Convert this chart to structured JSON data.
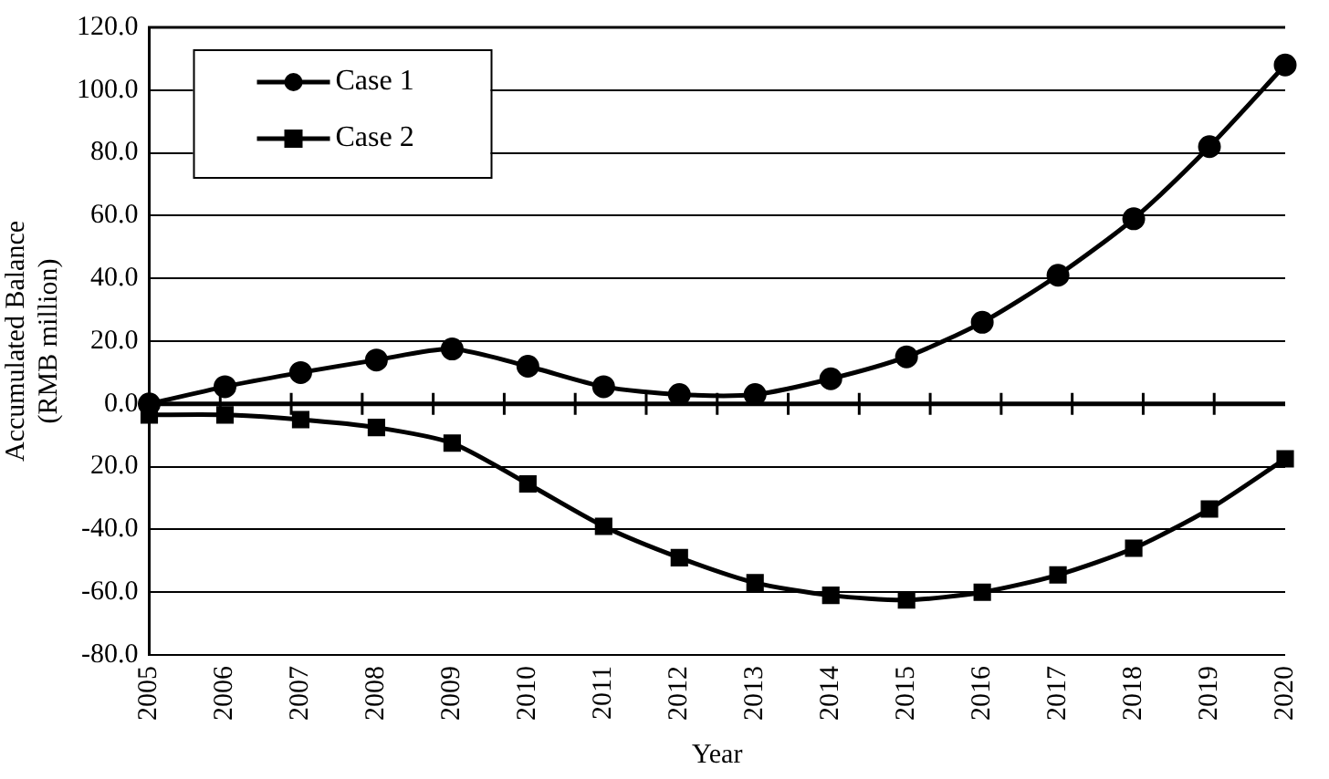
{
  "chart_data": {
    "type": "line",
    "xlabel": "Year",
    "ylabel": "Accumulated Balance\n(RMB million)",
    "categories": [
      "2005",
      "2006",
      "2007",
      "2008",
      "2009",
      "2010",
      "2011",
      "2012",
      "2013",
      "2014",
      "2015",
      "2016",
      "2017",
      "2018",
      "2019",
      "2020"
    ],
    "series": [
      {
        "name": "Case 1",
        "color": "#000000",
        "marker": "circle",
        "values": [
          0,
          5.5,
          10,
          14,
          17.5,
          12,
          5.5,
          3,
          3,
          8,
          15,
          26,
          41,
          59,
          82,
          108
        ]
      },
      {
        "name": "Case 2",
        "color": "#000000",
        "marker": "square",
        "values": [
          -3.5,
          -3.5,
          -5,
          -7.5,
          -12.5,
          -25.5,
          -39,
          -49,
          -57,
          -61,
          -62.5,
          -60,
          -54.5,
          -46,
          -33.5,
          -17.5
        ]
      }
    ],
    "ylim": [
      -80,
      120
    ],
    "yticks": [
      {
        "value": -80,
        "label": "-80.0"
      },
      {
        "value": -60,
        "label": "-60.0"
      },
      {
        "value": -40,
        "label": "-40.0"
      },
      {
        "value": -20,
        "label": "20.0"
      },
      {
        "value": 0,
        "label": "0.0"
      },
      {
        "value": 20,
        "label": "20.0"
      },
      {
        "value": 40,
        "label": "40.0"
      },
      {
        "value": 60,
        "label": "60.0"
      },
      {
        "value": 80,
        "label": "80.0"
      },
      {
        "value": 100,
        "label": "100.0"
      },
      {
        "value": 120,
        "label": "120.0"
      }
    ],
    "grid": "y",
    "legend": "top left",
    "line_style": "solid"
  }
}
